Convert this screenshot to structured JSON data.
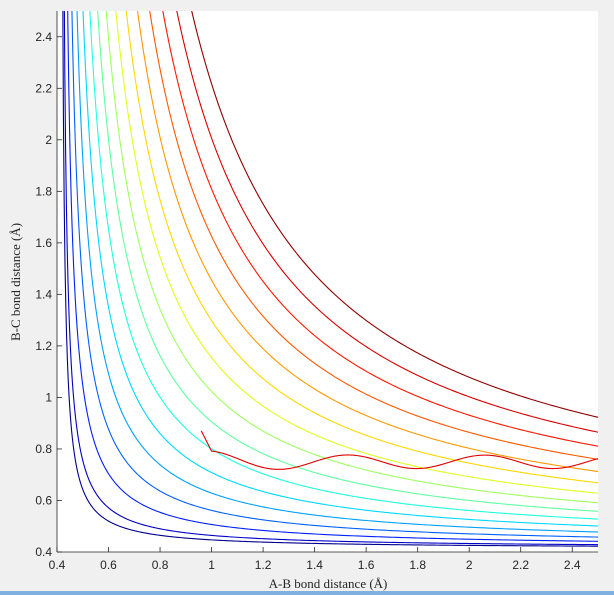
{
  "chart_data": {
    "type": "contour",
    "xlabel": "A-B bond distance (Å)",
    "ylabel": "B-C bond distance (Å)",
    "xlim": [
      0.4,
      2.5
    ],
    "ylim": [
      0.4,
      2.5
    ],
    "xticks": [
      0.4,
      0.6,
      0.8,
      1,
      1.2,
      1.4,
      1.6,
      1.8,
      2,
      2.2,
      2.4
    ],
    "xtick_labels": [
      "0.4",
      "0.6",
      "0.8",
      "1",
      "1.2",
      "1.4",
      "1.6",
      "1.8",
      "2",
      "2.2",
      "2.4"
    ],
    "yticks": [
      0.4,
      0.6,
      0.8,
      1,
      1.2,
      1.4,
      1.6,
      1.8,
      2,
      2.2,
      2.4
    ],
    "ytick_labels": [
      "0.4",
      "0.6",
      "0.8",
      "1",
      "1.2",
      "1.4",
      "1.6",
      "1.8",
      "2",
      "2.2",
      "2.4"
    ],
    "grid": false,
    "colormap": "jet",
    "contour_levels": [
      {
        "inner": 0.15,
        "color": "#00008f"
      },
      {
        "inner": 0.23,
        "color": "#0000c8"
      },
      {
        "inner": 0.31,
        "color": "#0020ff"
      },
      {
        "inner": 0.39,
        "color": "#0060ff"
      },
      {
        "inner": 0.47,
        "color": "#00a0ff"
      },
      {
        "inner": 0.55,
        "color": "#00d8ff"
      },
      {
        "inner": 0.63,
        "color": "#20ffe0"
      },
      {
        "inner": 0.71,
        "color": "#60ffa0"
      },
      {
        "inner": 0.79,
        "color": "#a0ff60"
      },
      {
        "inner": 0.87,
        "color": "#e0ff20"
      },
      {
        "inner": 0.95,
        "color": "#ffd800"
      },
      {
        "inner": 1.03,
        "color": "#ff9800"
      },
      {
        "inner": 1.11,
        "color": "#ff5800"
      },
      {
        "inner": 1.19,
        "color": "#ff1800"
      },
      {
        "inner": 1.27,
        "color": "#d80000"
      },
      {
        "inner": 1.35,
        "color": "#8f0000"
      }
    ],
    "trajectory": {
      "color": "#e00000",
      "start": [
        0.96,
        0.87
      ],
      "equilibrium_bc": 0.75,
      "amplitude": 0.026,
      "period": 0.53,
      "end_x": 2.5
    }
  }
}
